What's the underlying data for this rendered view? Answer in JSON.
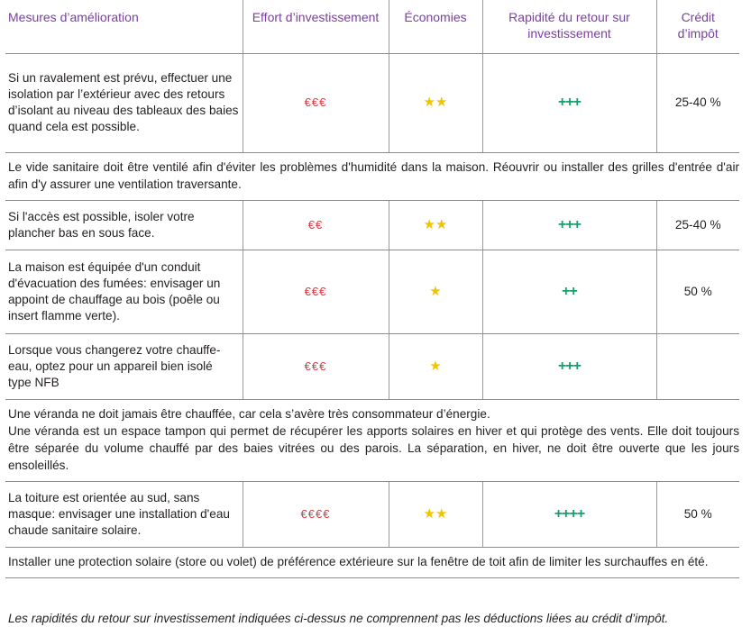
{
  "headers": {
    "c1": "Mesures d’amélioration",
    "c2": "Effort d’investissement",
    "c3": "Économies",
    "c4": "Rapidité du retour sur investissement",
    "c5": "Crédit d’impôt"
  },
  "rows": [
    {
      "measure": "Si un ravalement est prévu, effectuer une isolation par l’extérieur avec des retours d’isolant au niveau des tableaux des baies quand cela est possible.",
      "effort": "€€€",
      "savings": "★★",
      "payback": "+++",
      "credit": "25-40 %"
    },
    {
      "measure": "Si l'accès est possible, isoler votre plancher bas en sous face.",
      "effort": "€€",
      "savings": "★★",
      "payback": "+++",
      "credit": "25-40 %"
    },
    {
      "measure": "La maison est équipée d'un conduit d'évacuation des fumées: envisager un appoint de chauffage au bois (poêle ou insert flamme verte).",
      "effort": "€€€",
      "savings": "★",
      "payback": "++",
      "credit": "50 %"
    },
    {
      "measure": "Lorsque vous changerez votre chauffe-eau, optez pour un appareil bien isolé type NFB",
      "effort": "€€€",
      "savings": "★",
      "payback": "+++",
      "credit": ""
    },
    {
      "measure": "La toiture est orientée au sud, sans masque: envisager une installation d'eau chaude sanitaire solaire.",
      "effort": "€€€€",
      "savings": "★★",
      "payback": "++++",
      "credit": "50 %"
    }
  ],
  "notes": {
    "vide_sanitaire": "Le vide sanitaire doit être ventilé afin d'éviter les problèmes d'humidité dans la maison. Réouvrir ou installer des grilles d'entrée d'air afin d'y assurer une ventilation traversante.",
    "veranda_1": "Une véranda ne doit jamais être chauffée, car cela s’avère très consommateur d’énergie.",
    "veranda_2": "Une véranda est un espace tampon qui permet de récupérer les apports solaires en hiver et qui protège des vents. Elle doit toujours être séparée du volume chauffé par des baies vitrées ou des parois. La séparation, en hiver, ne doit être ouverte que les jours ensoleillés.",
    "protection": "Installer une protection solaire (store ou volet) de préférence extérieure sur la fenêtre de toit afin de limiter les surchauffes en été."
  },
  "footer": "Les rapidités du retour sur investissement indiquées ci-dessus ne comprennent pas les déductions liées au crédit d’impôt.",
  "colors": {
    "header_purple": "#7a3fa0",
    "euro_red": "#e2373f",
    "star_yellow": "#f2c300",
    "plus_green": "#14a06a"
  }
}
